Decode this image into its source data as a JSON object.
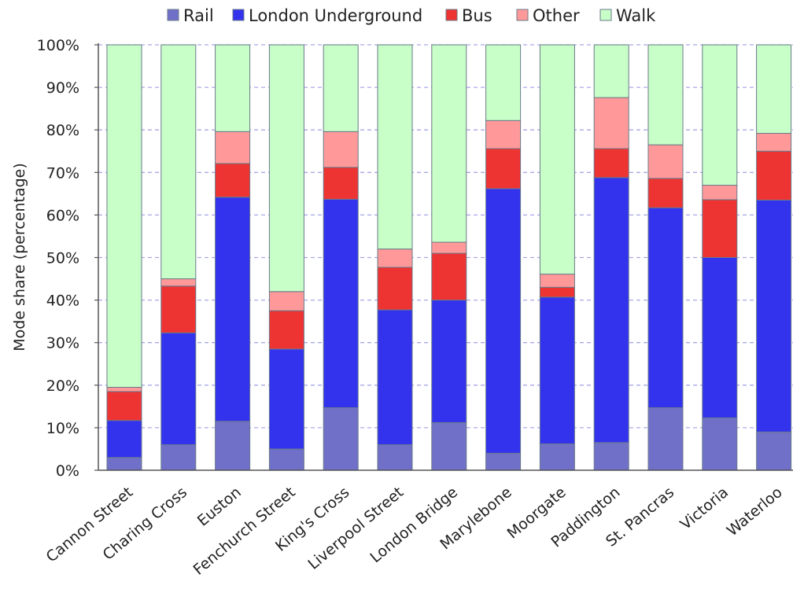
{
  "chart_data": {
    "type": "bar",
    "stacked": true,
    "title": "",
    "xlabel": "",
    "ylabel": "Mode share (percentage)",
    "ylim": [
      0,
      100
    ],
    "yticks": [
      "0%",
      "10%",
      "20%",
      "30%",
      "40%",
      "50%",
      "60%",
      "70%",
      "80%",
      "90%",
      "100%"
    ],
    "grid": "horizontal dashed",
    "legend_position": "top",
    "categories": [
      "Cannon Street",
      "Charing Cross",
      "Euston",
      "Fenchurch Street",
      "King's Cross",
      "Liverpool Street",
      "London Bridge",
      "Marylebone",
      "Moorgate",
      "Paddington",
      "St. Pancras",
      "Victoria",
      "Waterloo"
    ],
    "series": [
      {
        "name": "Rail",
        "color": "#7070c8",
        "values": [
          3,
          6,
          11.5,
          5,
          14.7,
          6,
          11.2,
          4,
          6.2,
          6.5,
          14.7,
          12.3,
          9
        ]
      },
      {
        "name": "London Underground",
        "color": "#3333ee",
        "values": [
          8.7,
          26.3,
          52.7,
          23.5,
          49,
          31.7,
          28.8,
          62.2,
          34.5,
          62.3,
          47,
          37.7,
          54.5
        ]
      },
      {
        "name": "Bus",
        "color": "#ee3333",
        "values": [
          6.8,
          11,
          7.9,
          9,
          7.5,
          10,
          11,
          9.4,
          2.3,
          6.8,
          6.9,
          13.6,
          11.5
        ]
      },
      {
        "name": "Other",
        "color": "#ff9999",
        "values": [
          1,
          1.7,
          7.5,
          4.5,
          8.4,
          4.3,
          2.6,
          6.6,
          3.1,
          12,
          7.9,
          3.4,
          4.2
        ]
      },
      {
        "name": "Walk",
        "color": "#c8ffc8",
        "values": [
          80.5,
          55,
          20.4,
          58,
          20.4,
          48,
          46.4,
          17.8,
          53.9,
          12.4,
          23.5,
          33,
          20.8
        ]
      }
    ]
  }
}
